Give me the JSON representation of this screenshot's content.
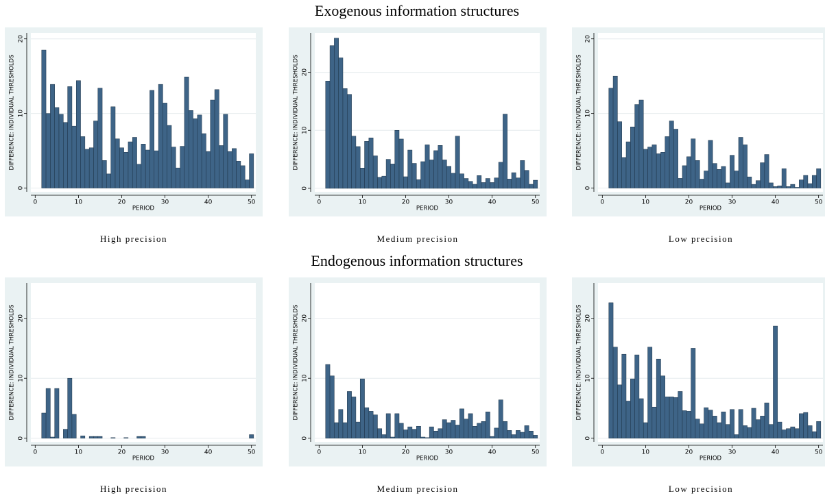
{
  "section_titles": [
    "Exogenous information structures",
    "Endogenous information structures"
  ],
  "chart_data": [
    {
      "type": "bar",
      "caption": "High precision",
      "xlabel": "PERIOD",
      "ylabel": "DIFFERENCE: INDIVIDUAL THRESHOLDS",
      "color": "#3e6487",
      "grid": true,
      "x": [
        2,
        3,
        4,
        5,
        6,
        7,
        8,
        9,
        10,
        11,
        12,
        13,
        14,
        15,
        16,
        17,
        18,
        19,
        20,
        21,
        22,
        23,
        24,
        25,
        26,
        27,
        28,
        29,
        30,
        31,
        32,
        33,
        34,
        35,
        36,
        37,
        38,
        39,
        40,
        41,
        42,
        43,
        44,
        45,
        46,
        47,
        48,
        49,
        50
      ],
      "values": [
        18.5,
        10,
        13.9,
        10.8,
        9.9,
        8.8,
        13.6,
        8.3,
        14.4,
        6.9,
        5.2,
        5.4,
        9,
        13.4,
        3.7,
        1.9,
        10.9,
        6.6,
        5.4,
        4.8,
        6.2,
        6.8,
        3.2,
        5.9,
        5.1,
        13.1,
        5,
        13.9,
        11.4,
        8.4,
        5.5,
        2.7,
        5.6,
        14.9,
        10.4,
        9.3,
        9.8,
        7.3,
        4.9,
        11.8,
        13.2,
        5.7,
        9.9,
        4.9,
        5.3,
        3.6,
        3,
        1.1,
        4.6
      ],
      "xlim": [
        -1,
        51
      ],
      "ylim": [
        -0.5,
        20.8
      ],
      "xticks": [
        0,
        10,
        20,
        30,
        40,
        50
      ],
      "yticks": [
        0,
        10,
        20
      ]
    },
    {
      "type": "bar",
      "caption": "Medium precision",
      "xlabel": "PERIOD",
      "ylabel": "DIFFERENCE: INDIVIDUAL THRESHOLDS",
      "color": "#3e6487",
      "grid": true,
      "x": [
        2,
        3,
        4,
        5,
        6,
        7,
        8,
        9,
        10,
        11,
        12,
        13,
        14,
        15,
        16,
        17,
        18,
        19,
        20,
        21,
        22,
        23,
        24,
        25,
        26,
        27,
        28,
        29,
        30,
        31,
        32,
        33,
        34,
        35,
        36,
        37,
        38,
        39,
        40,
        41,
        42,
        43,
        44,
        45,
        46,
        47,
        48,
        49,
        50
      ],
      "values": [
        18.5,
        24.6,
        25.9,
        22.5,
        17.2,
        16.2,
        9,
        7.2,
        3.5,
        8.1,
        8.7,
        5.6,
        1.9,
        2.1,
        5,
        4.2,
        10,
        8.5,
        2,
        6.6,
        4.3,
        1.5,
        4.6,
        7.5,
        4.9,
        6.5,
        7.4,
        4.9,
        3.8,
        2.6,
        9,
        2.5,
        1.7,
        1.2,
        0.7,
        2.2,
        1,
        1.7,
        1,
        1.8,
        4.5,
        12.8,
        1.6,
        2.7,
        1.8,
        4.8,
        3.1,
        0.7,
        1.4
      ],
      "xlim": [
        -1,
        51
      ],
      "ylim": [
        -0.6,
        26.8
      ],
      "xticks": [
        0,
        10,
        20,
        30,
        40,
        50
      ],
      "yticks": [
        0,
        10,
        20
      ]
    },
    {
      "type": "bar",
      "caption": "Low precision",
      "xlabel": "PERIOD",
      "ylabel": "DIFFERENCE: INDIVIDUAL THRESHOLDS",
      "color": "#3e6487",
      "grid": true,
      "x": [
        2,
        3,
        4,
        5,
        6,
        7,
        8,
        9,
        10,
        11,
        12,
        13,
        14,
        15,
        16,
        17,
        18,
        19,
        20,
        21,
        22,
        23,
        24,
        25,
        26,
        27,
        28,
        29,
        30,
        31,
        32,
        33,
        34,
        35,
        36,
        37,
        38,
        39,
        40,
        41,
        42,
        43,
        44,
        45,
        46,
        47,
        48,
        49,
        50
      ],
      "values": [
        13.4,
        15,
        8.9,
        4.1,
        6.2,
        8.2,
        11.2,
        11.8,
        5.2,
        5.5,
        5.8,
        4.6,
        4.8,
        6.9,
        9,
        7.9,
        1.3,
        3,
        4.2,
        6.6,
        3.7,
        1.2,
        2.3,
        6.4,
        3.3,
        2.5,
        2.9,
        0.7,
        4.4,
        2.3,
        6.8,
        5.8,
        1.5,
        0.5,
        1,
        3.4,
        4.5,
        0.7,
        0.2,
        0.3,
        2.6,
        0.2,
        0.5,
        0.1,
        1.1,
        1.7,
        0.6,
        1.7,
        2.6
      ],
      "xlim": [
        -1,
        51
      ],
      "ylim": [
        -0.5,
        20.8
      ],
      "xticks": [
        0,
        10,
        20,
        30,
        40,
        50
      ],
      "yticks": [
        0,
        10,
        20
      ]
    },
    {
      "type": "bar",
      "caption": "High precision",
      "xlabel": "PERIOD",
      "ylabel": "DIFFERENCE: INDIVIDUAL THRESHOLDS",
      "color": "#3e6487",
      "grid": true,
      "x": [
        2,
        3,
        4,
        5,
        6,
        7,
        8,
        9,
        10,
        11,
        12,
        13,
        14,
        15,
        16,
        17,
        18,
        19,
        20,
        21,
        22,
        23,
        24,
        25,
        26,
        27,
        28,
        29,
        30,
        31,
        32,
        33,
        34,
        35,
        36,
        37,
        38,
        39,
        40,
        41,
        42,
        43,
        44,
        45,
        46,
        47,
        48,
        49,
        50
      ],
      "values": [
        4.2,
        8.3,
        0.2,
        8.3,
        0,
        1.5,
        10,
        4,
        0,
        0.4,
        0,
        0.3,
        0.3,
        0.3,
        0,
        0,
        0.1,
        0,
        0,
        0.1,
        0,
        0,
        0.3,
        0.3,
        0,
        0,
        0,
        0,
        0,
        0,
        0,
        0,
        0,
        0,
        0,
        0,
        0,
        0,
        0,
        0,
        0,
        0,
        0,
        0,
        0,
        0,
        0,
        0,
        0.6
      ],
      "xlim": [
        -1,
        51
      ],
      "ylim": [
        -0.6,
        25.9
      ],
      "xticks": [
        0,
        10,
        20,
        30,
        40,
        50
      ],
      "yticks": [
        0,
        10,
        20
      ]
    },
    {
      "type": "bar",
      "caption": "Medium precision",
      "xlabel": "PERIOD",
      "ylabel": "DIFFERENCE: INDIVIDUAL THRESHOLDS",
      "color": "#3e6487",
      "grid": true,
      "x": [
        2,
        3,
        4,
        5,
        6,
        7,
        8,
        9,
        10,
        11,
        12,
        13,
        14,
        15,
        16,
        17,
        18,
        19,
        20,
        21,
        22,
        23,
        24,
        25,
        26,
        27,
        28,
        29,
        30,
        31,
        32,
        33,
        34,
        35,
        36,
        37,
        38,
        39,
        40,
        41,
        42,
        43,
        44,
        45,
        46,
        47,
        48,
        49,
        50
      ],
      "values": [
        12.3,
        10.4,
        2.6,
        4.8,
        2.6,
        7.8,
        6.9,
        2.7,
        9.9,
        5.1,
        4.5,
        3.9,
        1.6,
        0.6,
        4.1,
        0.2,
        4.1,
        2.5,
        1.4,
        1.9,
        1.5,
        2,
        0.2,
        0.1,
        1.9,
        1.2,
        1.6,
        3.1,
        2.6,
        3,
        2.2,
        4.9,
        3.2,
        4.1,
        2,
        2.5,
        2.8,
        4.4,
        0.3,
        1.7,
        6.4,
        2.8,
        1.3,
        0.6,
        1.3,
        1,
        2.1,
        1.2,
        0.5
      ],
      "xlim": [
        -1,
        51
      ],
      "ylim": [
        -0.6,
        25.9
      ],
      "xticks": [
        0,
        10,
        20,
        30,
        40,
        50
      ],
      "yticks": [
        0,
        10,
        20
      ]
    },
    {
      "type": "bar",
      "caption": "Low precision",
      "xlabel": "PERIOD",
      "ylabel": "DIFFERENCE: INDIVIDUAL THRESHOLDS",
      "color": "#3e6487",
      "grid": true,
      "x": [
        2,
        3,
        4,
        5,
        6,
        7,
        8,
        9,
        10,
        11,
        12,
        13,
        14,
        15,
        16,
        17,
        18,
        19,
        20,
        21,
        22,
        23,
        24,
        25,
        26,
        27,
        28,
        29,
        30,
        31,
        32,
        33,
        34,
        35,
        36,
        37,
        38,
        39,
        40,
        41,
        42,
        43,
        44,
        45,
        46,
        47,
        48,
        49,
        50
      ],
      "values": [
        22.6,
        15.2,
        8.9,
        14,
        6.2,
        9.9,
        13.9,
        6.6,
        2.6,
        15.2,
        5.2,
        13.2,
        10.4,
        6.9,
        6.9,
        6.8,
        7.8,
        4.6,
        4.5,
        15,
        3.2,
        2.4,
        5.1,
        4.7,
        3.7,
        2.6,
        4.4,
        2.3,
        4.8,
        0.6,
        4.8,
        2.1,
        1.8,
        5,
        3.1,
        3.7,
        5.9,
        2.3,
        18.7,
        2.7,
        1.4,
        1.6,
        1.9,
        1.6,
        4.1,
        4.3,
        2.1,
        1.1,
        2.8
      ],
      "xlim": [
        -1,
        51
      ],
      "ylim": [
        -0.6,
        25.9
      ],
      "xticks": [
        0,
        10,
        20,
        30,
        40,
        50
      ],
      "yticks": [
        0,
        10,
        20
      ]
    }
  ]
}
